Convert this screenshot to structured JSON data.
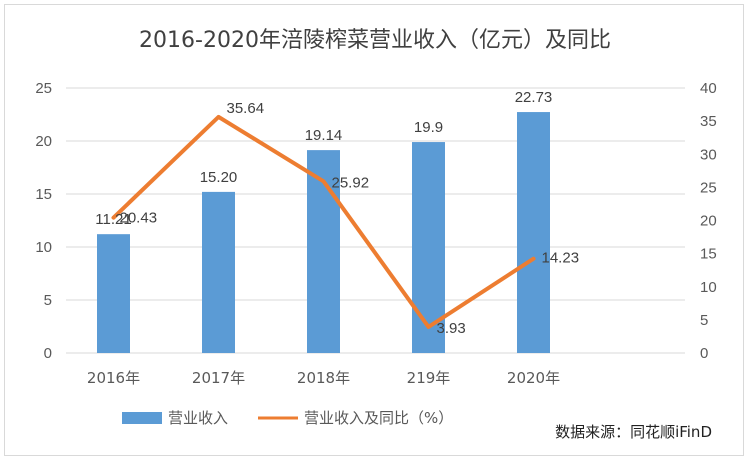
{
  "chart_data": {
    "type": "bar",
    "title": "2016-2020年涪陵榨菜营业收入（亿元）及同比",
    "categories": [
      "2016年",
      "2017年",
      "2018年",
      "219年",
      "2020年"
    ],
    "series": [
      {
        "name": "营业收入",
        "type": "bar",
        "axis": "left",
        "values": [
          11.21,
          15.2,
          19.14,
          19.9,
          22.73
        ],
        "labels": [
          "11.21",
          "15.20",
          "19.14",
          "19.9",
          "22.73"
        ],
        "color": "#5b9bd5"
      },
      {
        "name": "营业收入及同比（%）",
        "type": "line",
        "axis": "right",
        "values": [
          20.43,
          35.64,
          25.92,
          3.93,
          14.23
        ],
        "labels": [
          "20.43",
          "35.64",
          "25.92",
          "3.93",
          "14.23"
        ],
        "color": "#ed7d31"
      }
    ],
    "y_left": {
      "min": 0,
      "max": 25,
      "ticks": [
        "0",
        "5",
        "10",
        "15",
        "20",
        "25"
      ]
    },
    "y_right": {
      "min": 0,
      "max": 40,
      "ticks": [
        "0",
        "5",
        "10",
        "15",
        "20",
        "25",
        "30",
        "35",
        "40"
      ]
    },
    "grid": true,
    "legend": "bottom"
  },
  "source": "数据来源：同花顺iFinD"
}
